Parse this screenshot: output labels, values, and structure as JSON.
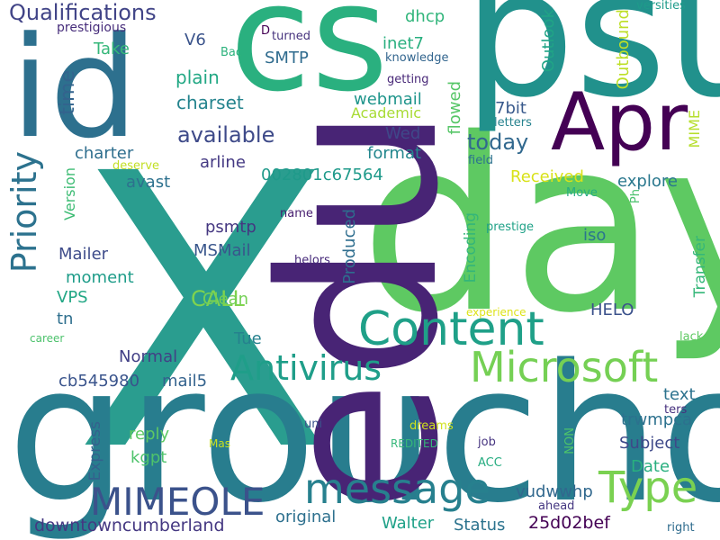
{
  "words": [
    {
      "text": "X",
      "color": "#2a9d8f"
    },
    {
      "text": "groucho",
      "color": "#287d8e"
    },
    {
      "text": "day",
      "color": "#5ec962"
    },
    {
      "text": "psu",
      "color": "#21918c"
    },
    {
      "text": "cs",
      "color": "#2ab07f"
    },
    {
      "text": "id",
      "color": "#2d708e"
    },
    {
      "text": "edu",
      "color": "#482475"
    },
    {
      "text": "Apr",
      "color": "#440154"
    },
    {
      "text": "Content",
      "color": "#1fa088"
    },
    {
      "text": "Microsoft",
      "color": "#75d054"
    },
    {
      "text": "Priority",
      "color": "#2c728e"
    },
    {
      "text": "Antivirus",
      "color": "#1f9e89"
    },
    {
      "text": "message",
      "color": "#27808e"
    },
    {
      "text": "MIMEOLE",
      "color": "#3b528b"
    },
    {
      "text": "Type",
      "color": "#7ad151"
    },
    {
      "text": "Qualifications",
      "color": "#414487"
    },
    {
      "text": "available",
      "color": "#3e4a89"
    },
    {
      "text": "today",
      "color": "#31688e"
    },
    {
      "text": "CALL",
      "color": "#7fd34e"
    },
    {
      "text": "time",
      "color": "#33638d"
    },
    {
      "text": "plain",
      "color": "#22a884"
    },
    {
      "text": "charset",
      "color": "#25848e"
    },
    {
      "text": "SMTP",
      "color": "#2f6b8e"
    },
    {
      "text": "V6",
      "color": "#3a538b"
    },
    {
      "text": "Take",
      "color": "#35b779"
    },
    {
      "text": "dhcp",
      "color": "#31b57b"
    },
    {
      "text": "inet7",
      "color": "#29af7f"
    },
    {
      "text": "webmail",
      "color": "#1f958b"
    },
    {
      "text": "Academic",
      "color": "#a8db34"
    },
    {
      "text": "Wed",
      "color": "#3f4889"
    },
    {
      "text": "format",
      "color": "#24878e"
    },
    {
      "text": "flowed",
      "color": "#56c667"
    },
    {
      "text": "7bit",
      "color": "#38598c"
    },
    {
      "text": "Outlook",
      "color": "#20a486"
    },
    {
      "text": "Outbound",
      "color": "#bddf26"
    },
    {
      "text": "versities",
      "color": "#1e9b8a"
    },
    {
      "text": "prestigious",
      "color": "#472d7b"
    },
    {
      "text": "D",
      "color": "#440154"
    },
    {
      "text": "turned",
      "color": "#46337e"
    },
    {
      "text": "Bac",
      "color": "#2db27d"
    },
    {
      "text": "knowledge",
      "color": "#32658e"
    },
    {
      "text": "getting",
      "color": "#482878"
    },
    {
      "text": "letters",
      "color": "#26828e"
    },
    {
      "text": "charter",
      "color": "#2e6e8e"
    },
    {
      "text": "arline",
      "color": "#443983"
    },
    {
      "text": "avast",
      "color": "#2d718e"
    },
    {
      "text": "002801c67564",
      "color": "#1f9a8a"
    },
    {
      "text": "Received",
      "color": "#d8e219"
    },
    {
      "text": "explore",
      "color": "#2a788e"
    },
    {
      "text": "MIME",
      "color": "#b5de2b"
    },
    {
      "text": "field",
      "color": "#2c728e"
    },
    {
      "text": "deserve",
      "color": "#c2df23"
    },
    {
      "text": "Version",
      "color": "#3dbc74"
    },
    {
      "text": "psmtp",
      "color": "#453781"
    },
    {
      "text": "MSMail",
      "color": "#39568c"
    },
    {
      "text": "name",
      "color": "#481f70"
    },
    {
      "text": "Move",
      "color": "#27ad81"
    },
    {
      "text": "Ph",
      "color": "#4ac16d"
    },
    {
      "text": "prestige",
      "color": "#1fa187"
    },
    {
      "text": "iso",
      "color": "#2a768e"
    },
    {
      "text": "Encoding",
      "color": "#34b679"
    },
    {
      "text": "Produced",
      "color": "#2e6d8e"
    },
    {
      "text": "Mailer",
      "color": "#3e4c8a"
    },
    {
      "text": "moment",
      "color": "#1e9c89"
    },
    {
      "text": "Clean",
      "color": "#74d055"
    },
    {
      "text": "helors",
      "color": "#472a7a"
    },
    {
      "text": "VPS",
      "color": "#22a785"
    },
    {
      "text": "tn",
      "color": "#2e6f8e"
    },
    {
      "text": "HELO",
      "color": "#3b518b"
    },
    {
      "text": "Transfer",
      "color": "#35b779"
    },
    {
      "text": "experience",
      "color": "#dde318"
    },
    {
      "text": "Tue",
      "color": "#26818e"
    },
    {
      "text": "career",
      "color": "#4cc26c"
    },
    {
      "text": "lack",
      "color": "#5ec962"
    },
    {
      "text": "Normal",
      "color": "#424086"
    },
    {
      "text": "cb545980",
      "color": "#3a548c"
    },
    {
      "text": "mail5",
      "color": "#33628d"
    },
    {
      "text": "text",
      "color": "#2c728e"
    },
    {
      "text": "ters",
      "color": "#46307e"
    },
    {
      "text": "trwmpca",
      "color": "#2c718e"
    },
    {
      "text": "reply",
      "color": "#5ec962"
    },
    {
      "text": "uni",
      "color": "#3b528b"
    },
    {
      "text": "dreams",
      "color": "#d0e11c"
    },
    {
      "text": "Subject",
      "color": "#3e4989"
    },
    {
      "text": "Express",
      "color": "#34618d"
    },
    {
      "text": "kgpt",
      "color": "#4ec36b"
    },
    {
      "text": "Mas",
      "color": "#c8e020"
    },
    {
      "text": "REDITED",
      "color": "#35b779"
    },
    {
      "text": "job",
      "color": "#463480"
    },
    {
      "text": "NON",
      "color": "#4dc36b"
    },
    {
      "text": "Date",
      "color": "#29af7f"
    },
    {
      "text": "vudwwhp",
      "color": "#31688e"
    },
    {
      "text": "ACC",
      "color": "#27ad81"
    },
    {
      "text": "ahead",
      "color": "#453781"
    },
    {
      "text": "downtowncumberland",
      "color": "#453882"
    },
    {
      "text": "original",
      "color": "#2d708e"
    },
    {
      "text": "Walter",
      "color": "#1fa188"
    },
    {
      "text": "Status",
      "color": "#2c738e"
    },
    {
      "text": "25d02bef",
      "color": "#440154"
    },
    {
      "text": "right",
      "color": "#2f6c8e"
    }
  ]
}
